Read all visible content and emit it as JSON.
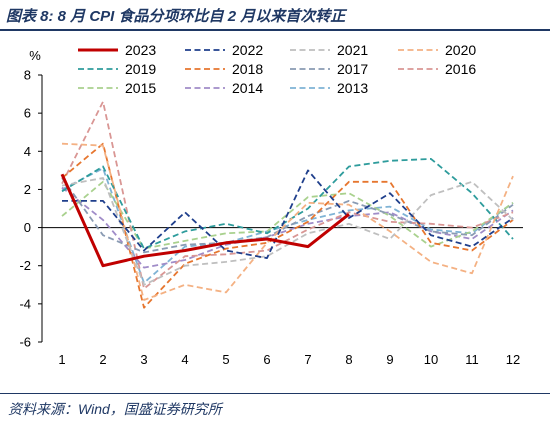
{
  "figure": {
    "title": "图表 8:  8 月 CPI 食品分项环比自 2 月以来首次转正",
    "source": "资料来源：Wind，国盛证券研究所"
  },
  "chart_data": {
    "type": "line",
    "ylabel": "%",
    "ylim": [
      -6,
      8
    ],
    "yticks": [
      -6,
      -4,
      -2,
      0,
      2,
      4,
      6,
      8
    ],
    "x": [
      1,
      2,
      3,
      4,
      5,
      6,
      7,
      8,
      9,
      10,
      11,
      12
    ],
    "xlabels": [
      "1",
      "2",
      "3",
      "4",
      "5",
      "6",
      "7",
      "8",
      "9",
      "10",
      "11",
      "12"
    ],
    "grid": false,
    "legend": "top",
    "series": [
      {
        "name": "2023",
        "color": "#c00000",
        "dash": "solid",
        "width": 3,
        "values": [
          2.8,
          -2.0,
          -1.5,
          -1.2,
          -0.8,
          -0.6,
          -1.0,
          0.7,
          null,
          null,
          null,
          null
        ]
      },
      {
        "name": "2022",
        "color": "#1f3f8c",
        "dash": "dash",
        "width": 1.8,
        "values": [
          1.4,
          1.4,
          -1.2,
          0.8,
          -1.2,
          -1.6,
          3.0,
          0.5,
          1.8,
          -0.4,
          -1.0,
          0.5
        ]
      },
      {
        "name": "2021",
        "color": "#bfbfbf",
        "dash": "dash",
        "width": 1.8,
        "values": [
          2.2,
          2.6,
          -3.0,
          -2.0,
          -1.8,
          -1.5,
          -0.3,
          0.2,
          -0.6,
          1.7,
          2.4,
          0.4
        ]
      },
      {
        "name": "2020",
        "color": "#f4b183",
        "dash": "dash",
        "width": 1.8,
        "values": [
          4.4,
          4.3,
          -3.8,
          -3.0,
          -3.4,
          -0.8,
          1.3,
          1.2,
          -0.2,
          -1.8,
          -2.4,
          2.7
        ]
      },
      {
        "name": "2019",
        "color": "#2e9c9c",
        "dash": "dash",
        "width": 1.8,
        "values": [
          1.9,
          3.2,
          -1.1,
          -0.2,
          0.2,
          -0.3,
          1.0,
          3.2,
          3.5,
          3.6,
          1.8,
          -0.6
        ]
      },
      {
        "name": "2018",
        "color": "#e6762f",
        "dash": "dash",
        "width": 1.8,
        "values": [
          2.6,
          4.4,
          -4.2,
          -1.9,
          -1.1,
          -0.8,
          0.3,
          2.4,
          2.4,
          -0.8,
          -1.2,
          0.4
        ]
      },
      {
        "name": "2017",
        "color": "#8a9bb3",
        "dash": "dash",
        "width": 1.8,
        "values": [
          2.6,
          -0.4,
          -1.3,
          -0.9,
          -0.8,
          -0.5,
          0.6,
          1.4,
          0.7,
          -0.2,
          -0.4,
          1.2
        ]
      },
      {
        "name": "2016",
        "color": "#d99694",
        "dash": "dash",
        "width": 1.8,
        "values": [
          2.3,
          6.6,
          -3.2,
          -1.5,
          -1.4,
          -1.2,
          -0.1,
          0.8,
          0.3,
          0.2,
          0.0,
          0.8
        ]
      },
      {
        "name": "2015",
        "color": "#a9d18e",
        "dash": "dash",
        "width": 1.8,
        "values": [
          0.6,
          2.4,
          -1.1,
          -0.7,
          -0.3,
          -0.2,
          1.6,
          1.8,
          0.6,
          -1.0,
          -0.2,
          1.3
        ]
      },
      {
        "name": "2014",
        "color": "#a08cc8",
        "dash": "dash",
        "width": 1.8,
        "values": [
          2.1,
          0.4,
          -2.1,
          -1.7,
          -0.9,
          -0.5,
          0.2,
          0.6,
          0.8,
          -0.2,
          -0.6,
          0.9
        ]
      },
      {
        "name": "2013",
        "color": "#7fb3d5",
        "dash": "dash",
        "width": 1.8,
        "values": [
          2.0,
          3.1,
          -2.9,
          -1.0,
          -0.8,
          -0.2,
          0.4,
          0.9,
          1.1,
          -0.1,
          -0.3,
          1.3
        ]
      }
    ]
  }
}
